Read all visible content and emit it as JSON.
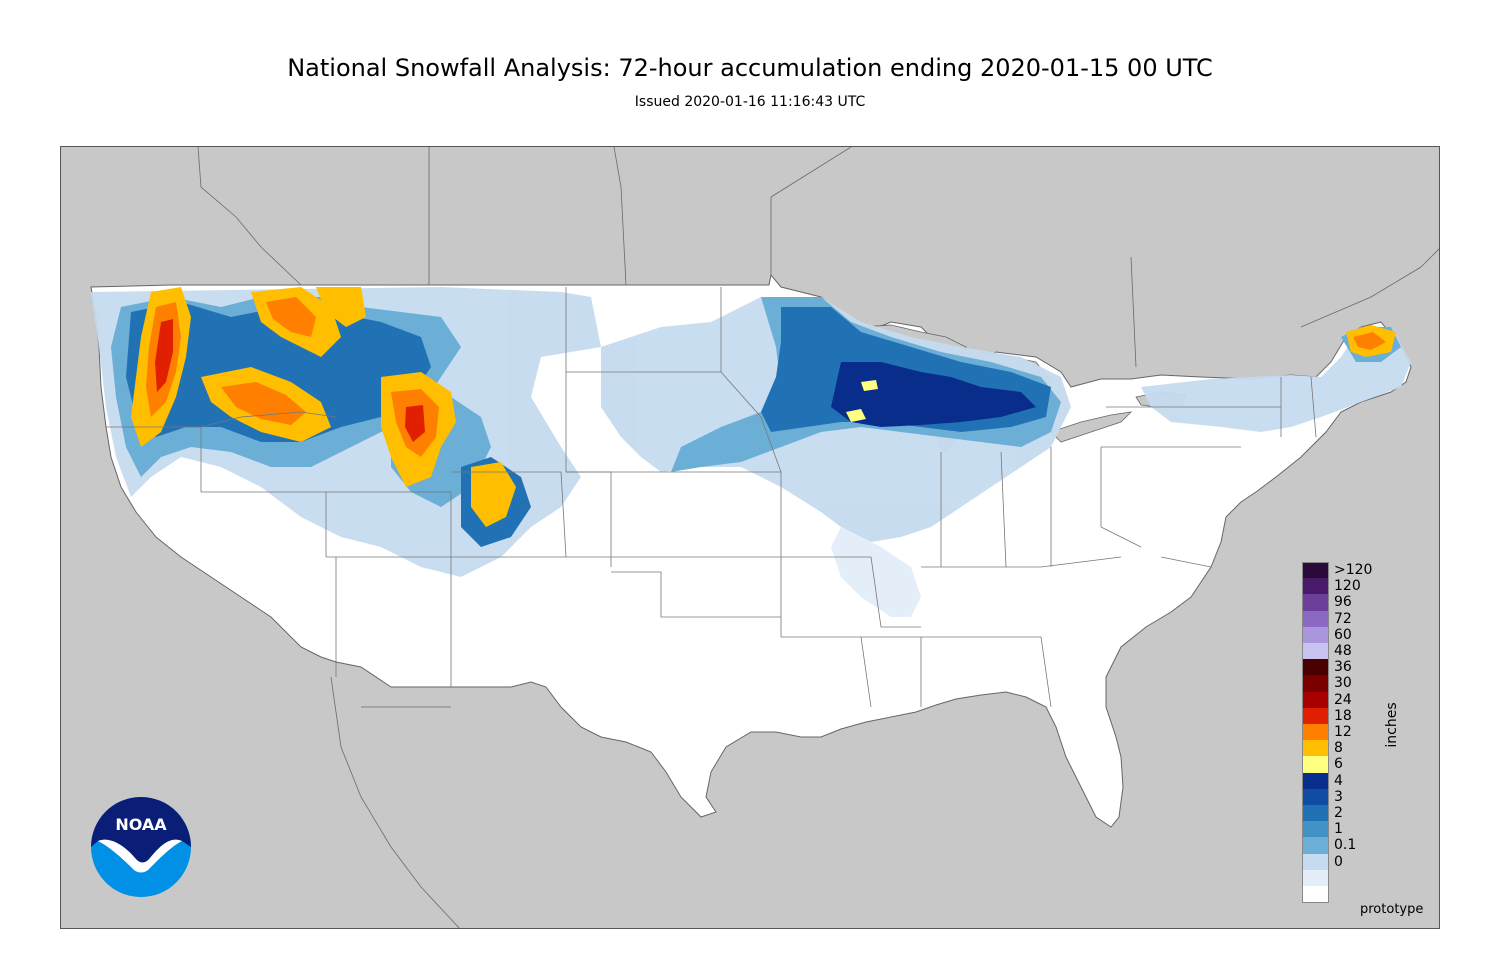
{
  "title": "National Snowfall Analysis: 72-hour accumulation ending 2020-01-15 00 UTC",
  "subtitle": "Issued 2020-01-16 11:16:43 UTC",
  "units_label": "inches",
  "footer_note": "prototype",
  "logo_text": "NOAA",
  "colors": {
    "land_outside": "#c8c8c8",
    "water": "#c8c8c8",
    "us_land": "#ffffff",
    "border": "#555555"
  },
  "legend": [
    {
      "label": ">120",
      "color": "#2a0a3a"
    },
    {
      "label": "120",
      "color": "#4a1a6a"
    },
    {
      "label": "96",
      "color": "#6b3f9a"
    },
    {
      "label": "72",
      "color": "#8b68c2"
    },
    {
      "label": "60",
      "color": "#a996dc"
    },
    {
      "label": "48",
      "color": "#c9c3f2"
    },
    {
      "label": "36",
      "color": "#4a0000"
    },
    {
      "label": "30",
      "color": "#7a0000"
    },
    {
      "label": "24",
      "color": "#a80000"
    },
    {
      "label": "18",
      "color": "#e02000"
    },
    {
      "label": "12",
      "color": "#ff7f00"
    },
    {
      "label": "8",
      "color": "#ffbf00"
    },
    {
      "label": "6",
      "color": "#ffff80"
    },
    {
      "label": "4",
      "color": "#082d8a"
    },
    {
      "label": "3",
      "color": "#0f4da2"
    },
    {
      "label": "2",
      "color": "#2171b5"
    },
    {
      "label": "1",
      "color": "#4292c6"
    },
    {
      "label": "0.1",
      "color": "#6baed6"
    },
    {
      "label": "0",
      "color": "#c6dbef"
    },
    {
      "label": "",
      "color": "#e3eef8"
    },
    {
      "label": "",
      "color": "#ffffff"
    }
  ]
}
